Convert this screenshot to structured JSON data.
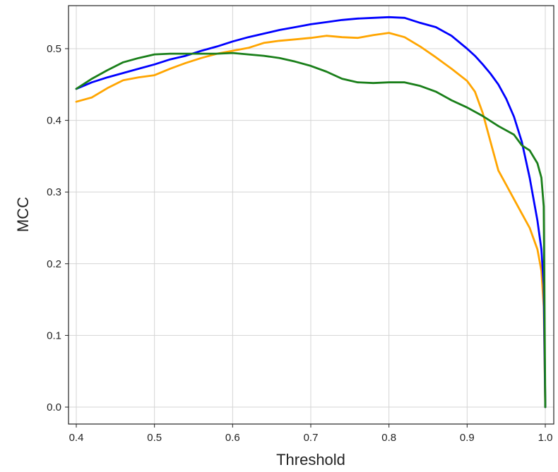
{
  "chart_data": {
    "type": "line",
    "title": "",
    "xlabel": "Threshold",
    "ylabel": "MCC",
    "xlim": [
      0.4,
      1.0
    ],
    "ylim": [
      0.0,
      0.56
    ],
    "xticks": [
      0.4,
      0.5,
      0.6,
      0.7,
      0.8,
      0.9,
      1.0
    ],
    "xtick_labels": [
      "0.4",
      "0.5",
      "0.6",
      "0.7",
      "0.8",
      "0.9",
      "1.0"
    ],
    "yticks": [
      0.0,
      0.1,
      0.2,
      0.3,
      0.4,
      0.5
    ],
    "ytick_labels": [
      "0.0",
      "0.1",
      "0.2",
      "0.3",
      "0.4",
      "0.5"
    ],
    "grid": true,
    "legend": "none",
    "series": [
      {
        "color": "#ffa500",
        "x": [
          0.4,
          0.42,
          0.44,
          0.46,
          0.48,
          0.5,
          0.52,
          0.54,
          0.56,
          0.58,
          0.6,
          0.62,
          0.64,
          0.66,
          0.68,
          0.7,
          0.72,
          0.74,
          0.76,
          0.78,
          0.8,
          0.82,
          0.84,
          0.86,
          0.88,
          0.9,
          0.91,
          0.92,
          0.93,
          0.94,
          0.95,
          0.96,
          0.97,
          0.98,
          0.99,
          0.995,
          0.998,
          1.0
        ],
        "y": [
          0.426,
          0.432,
          0.445,
          0.456,
          0.46,
          0.463,
          0.472,
          0.48,
          0.487,
          0.493,
          0.497,
          0.501,
          0.508,
          0.511,
          0.513,
          0.515,
          0.518,
          0.516,
          0.515,
          0.519,
          0.522,
          0.516,
          0.503,
          0.488,
          0.472,
          0.455,
          0.44,
          0.41,
          0.37,
          0.33,
          0.31,
          0.29,
          0.27,
          0.25,
          0.22,
          0.19,
          0.14,
          0.0
        ]
      },
      {
        "color": "#0000ff",
        "x": [
          0.4,
          0.42,
          0.44,
          0.46,
          0.48,
          0.5,
          0.52,
          0.54,
          0.56,
          0.58,
          0.6,
          0.62,
          0.64,
          0.66,
          0.68,
          0.7,
          0.72,
          0.74,
          0.76,
          0.78,
          0.8,
          0.82,
          0.84,
          0.86,
          0.88,
          0.9,
          0.91,
          0.92,
          0.93,
          0.94,
          0.95,
          0.96,
          0.97,
          0.98,
          0.99,
          0.995,
          0.998,
          1.0
        ],
        "y": [
          0.444,
          0.453,
          0.46,
          0.466,
          0.472,
          0.478,
          0.485,
          0.49,
          0.497,
          0.503,
          0.51,
          0.516,
          0.521,
          0.526,
          0.53,
          0.534,
          0.537,
          0.54,
          0.542,
          0.543,
          0.544,
          0.543,
          0.536,
          0.53,
          0.518,
          0.5,
          0.49,
          0.478,
          0.465,
          0.45,
          0.43,
          0.405,
          0.37,
          0.32,
          0.26,
          0.22,
          0.17,
          0.0
        ]
      },
      {
        "color": "#1a7f1a",
        "x": [
          0.4,
          0.42,
          0.44,
          0.46,
          0.48,
          0.5,
          0.52,
          0.54,
          0.56,
          0.58,
          0.6,
          0.62,
          0.64,
          0.66,
          0.68,
          0.7,
          0.72,
          0.74,
          0.76,
          0.78,
          0.8,
          0.82,
          0.84,
          0.86,
          0.88,
          0.9,
          0.92,
          0.94,
          0.96,
          0.97,
          0.98,
          0.99,
          0.995,
          0.998,
          1.0
        ],
        "y": [
          0.444,
          0.458,
          0.47,
          0.481,
          0.487,
          0.492,
          0.493,
          0.493,
          0.493,
          0.493,
          0.494,
          0.492,
          0.49,
          0.487,
          0.482,
          0.476,
          0.468,
          0.458,
          0.453,
          0.452,
          0.453,
          0.453,
          0.448,
          0.44,
          0.428,
          0.418,
          0.406,
          0.392,
          0.38,
          0.365,
          0.358,
          0.34,
          0.32,
          0.28,
          0.0
        ]
      }
    ]
  }
}
